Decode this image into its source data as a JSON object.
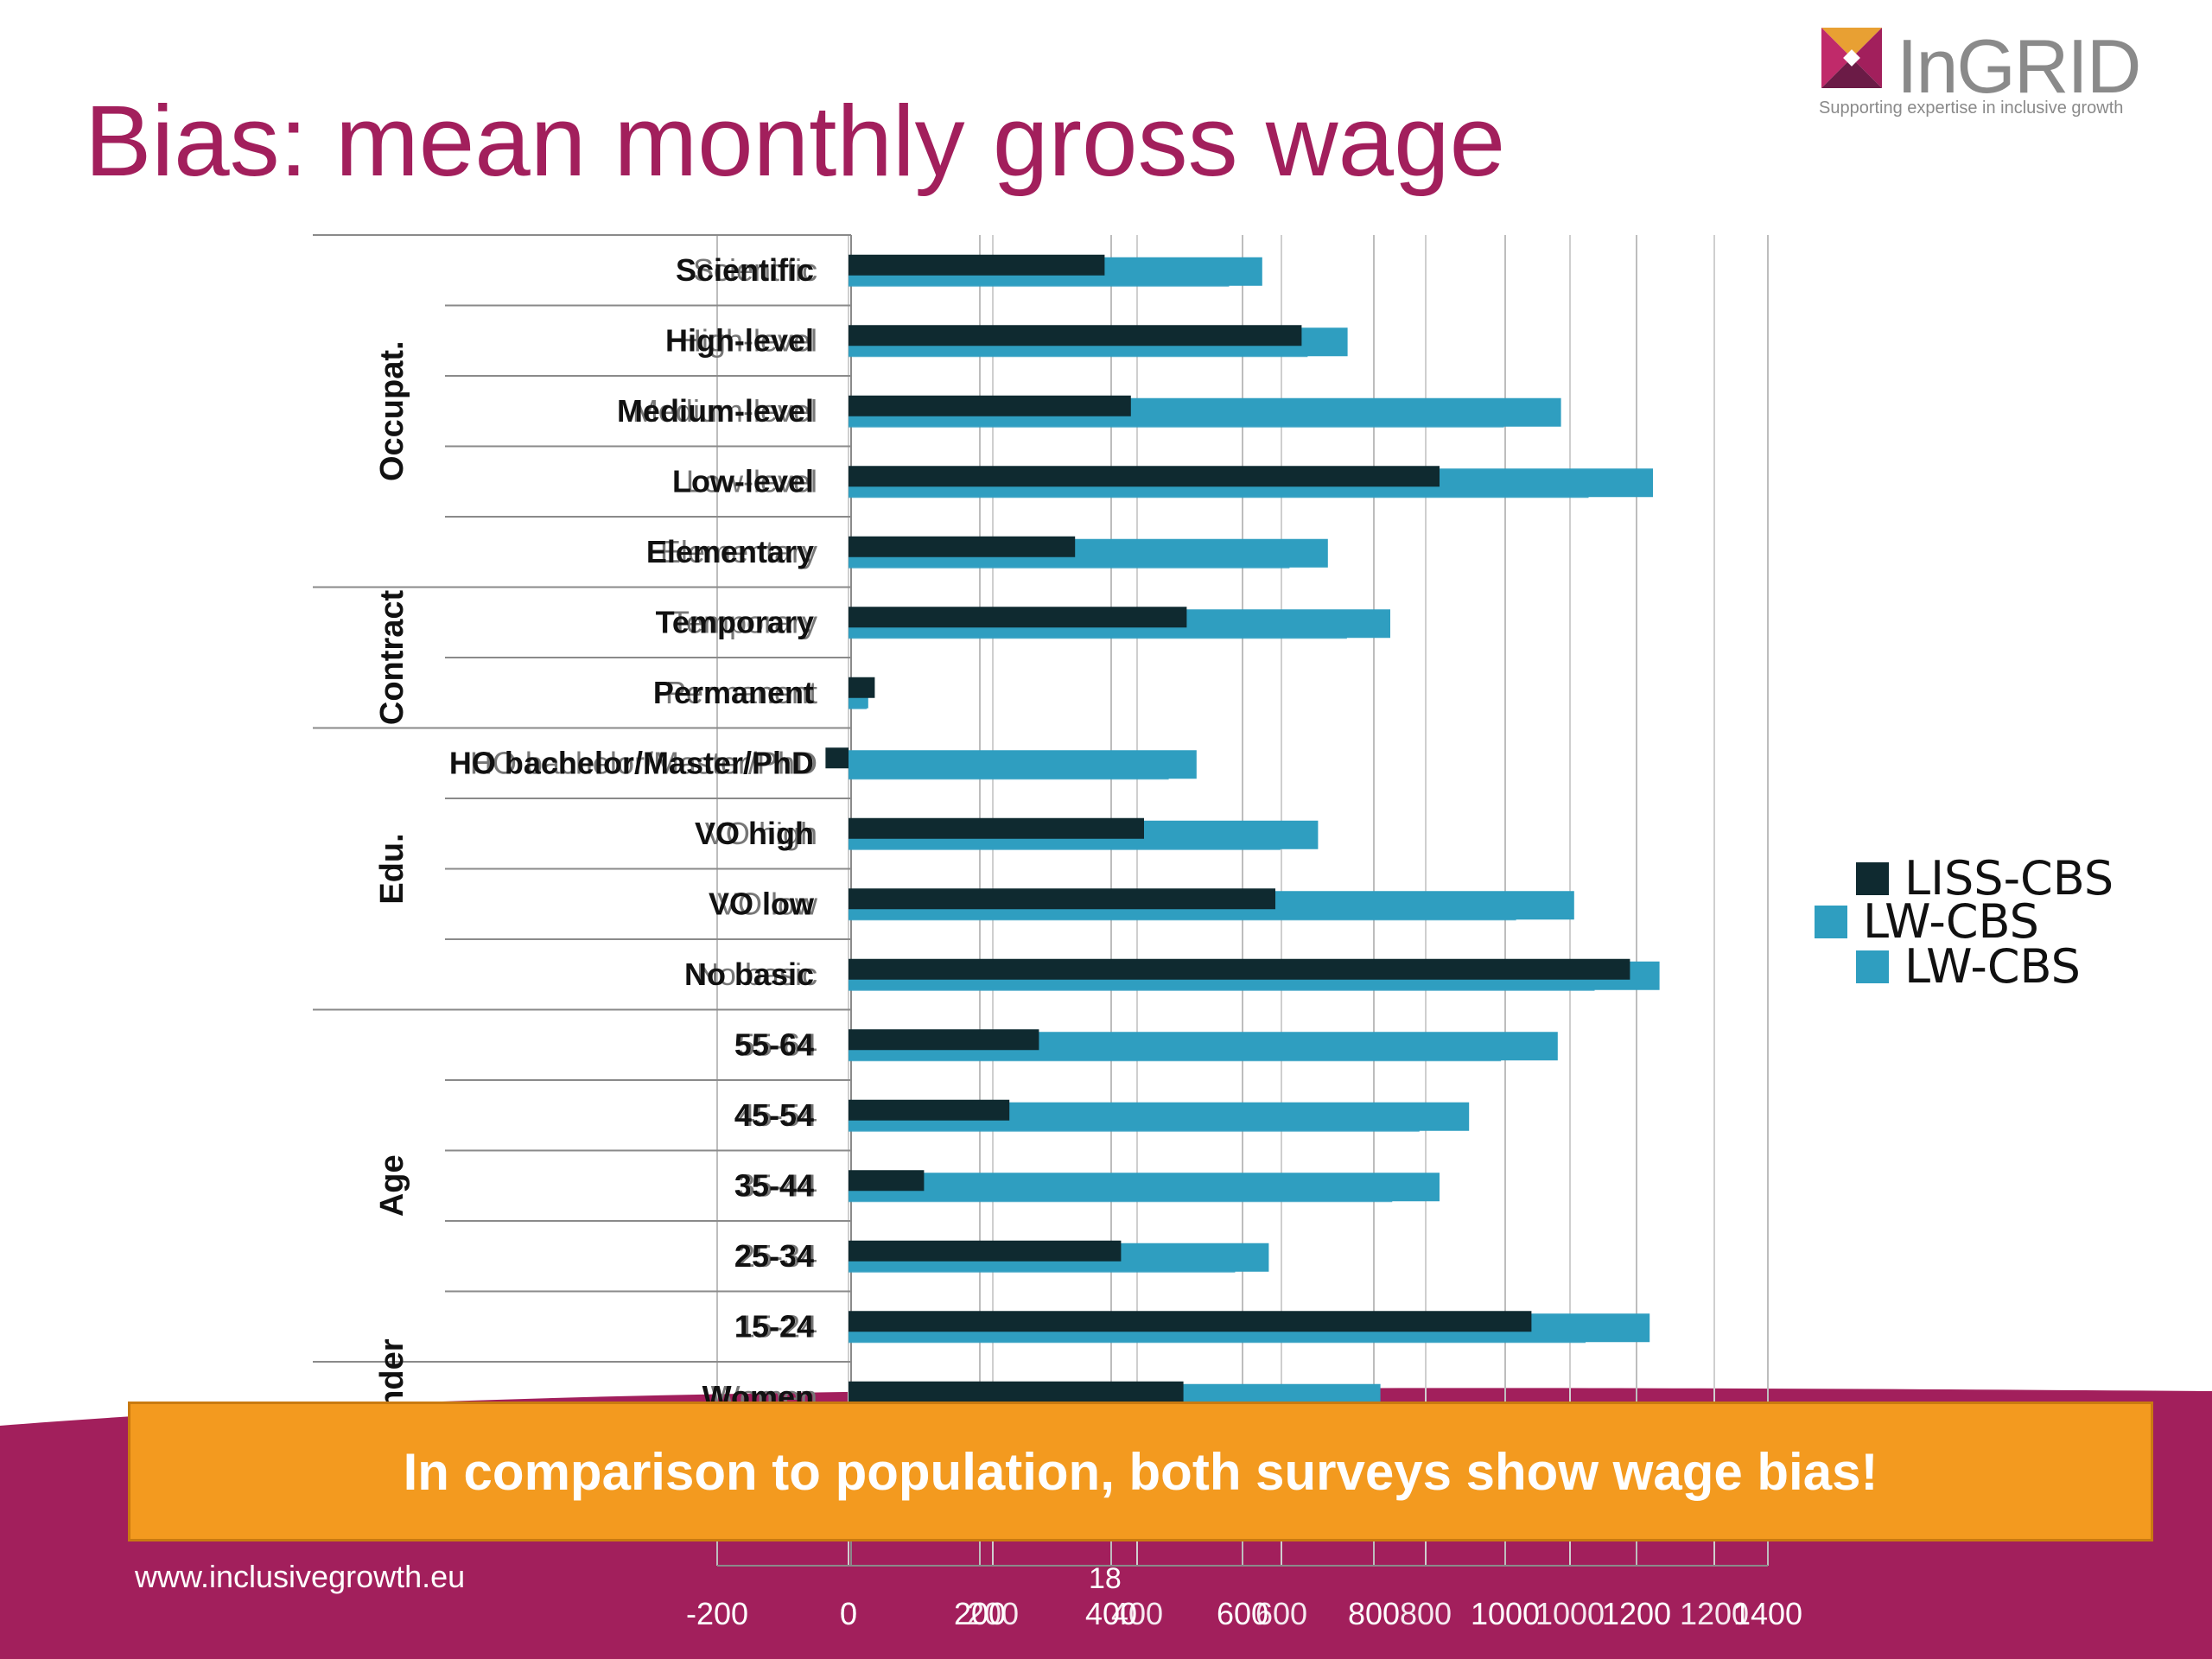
{
  "slide": {
    "title": "Bias: mean monthly gross wage",
    "banner_text": "In comparison to population, both surveys show wage bias!",
    "footer_url": "www.inclusivegrowth.eu",
    "page_number": "18"
  },
  "logo": {
    "name": "InGRID",
    "tagline": "Supporting expertise in inclusive growth",
    "colors": [
      "#e8a033",
      "#a21f5c",
      "#6b1b46"
    ]
  },
  "colors": {
    "title": "#a21f5c",
    "liss": "#0f2a30",
    "lw": "#2f9ec0",
    "banner": "#f39a1f",
    "band": "#a21f5c"
  },
  "chart_data": {
    "type": "bar",
    "orientation": "horizontal",
    "categories": [
      "Scientific",
      "High-level",
      "Medium-level",
      "Low-level",
      "Elementary",
      "Temporary",
      "Permanent",
      "HO bachelor/Master/PhD",
      "VO high",
      "VO low",
      "No basic",
      "55-64",
      "45-54",
      "35-44",
      "25-34",
      "15-24",
      "Women"
    ],
    "groups": [
      {
        "label": "Occupat.",
        "categories": [
          "Scientific",
          "High-level",
          "Medium-level",
          "Low-level",
          "Elementary"
        ]
      },
      {
        "label": "Contract",
        "categories": [
          "Temporary",
          "Permanent"
        ]
      },
      {
        "label": "Edu.",
        "categories": [
          "HO bachelor/Master/PhD",
          "VO high",
          "VO low",
          "No basic"
        ]
      },
      {
        "label": "Age",
        "categories": [
          "55-64",
          "45-54",
          "35-44",
          "25-34",
          "15-24"
        ]
      },
      {
        "label": "Gender",
        "categories": [
          "Women"
        ]
      }
    ],
    "series": [
      {
        "name": "LISS-CBS",
        "values": [
          390,
          690,
          430,
          900,
          345,
          515,
          40,
          -35,
          450,
          650,
          1190,
          290,
          245,
          115,
          415,
          1040,
          510
        ]
      },
      {
        "name": "LW-CBS",
        "values": [
          630,
          760,
          1085,
          1225,
          730,
          825,
          30,
          530,
          715,
          1105,
          1235,
          1080,
          945,
          900,
          640,
          1220,
          810
        ]
      }
    ],
    "x_ticks": [
      "-200",
      "0",
      "200",
      "400",
      "600",
      "800",
      "1000",
      "1200",
      "1400"
    ],
    "x_ticks_ghost": [
      "0",
      "200",
      "400",
      "600",
      "800",
      "1000",
      "1200"
    ],
    "xlim": [
      -200,
      1400
    ],
    "grid": true,
    "legend": [
      "LISS-CBS",
      "LW-CBS",
      "LW-CBS"
    ],
    "legend_position": "right"
  }
}
